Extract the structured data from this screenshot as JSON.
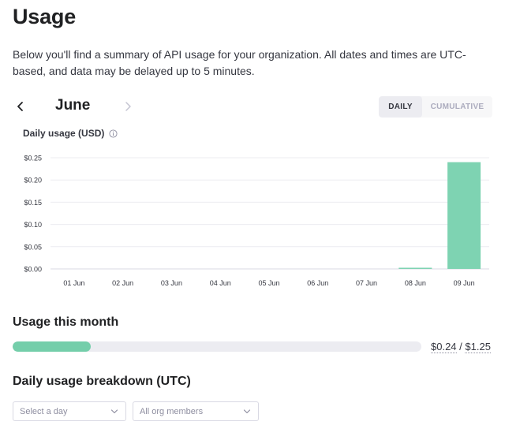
{
  "page": {
    "title": "Usage",
    "intro": "Below you'll find a summary of API usage for your organization. All dates and times are UTC-based, and data may be delayed up to 5 minutes."
  },
  "month_nav": {
    "month": "June",
    "prev_icon": "chevron-left-icon",
    "next_icon": "chevron-right-icon"
  },
  "view_toggle": {
    "options": [
      "DAILY",
      "CUMULATIVE"
    ],
    "selected": "DAILY"
  },
  "chart_section": {
    "title": "Daily usage (USD)",
    "info_icon": "info-icon"
  },
  "chart_data": {
    "type": "bar",
    "categories": [
      "01 Jun",
      "02 Jun",
      "03 Jun",
      "04 Jun",
      "05 Jun",
      "06 Jun",
      "07 Jun",
      "08 Jun",
      "09 Jun"
    ],
    "values": [
      0,
      0,
      0,
      0,
      0,
      0,
      0,
      0.002,
      0.24
    ],
    "ylim": [
      0,
      0.25
    ],
    "yticks": [
      "$0.00",
      "$0.05",
      "$0.10",
      "$0.15",
      "$0.20",
      "$0.25"
    ],
    "title": "",
    "xlabel": "",
    "ylabel": "",
    "grid": true,
    "bar_color": "#7ed3b2"
  },
  "usage_month": {
    "title": "Usage this month",
    "used": "$0.24",
    "separator": " / ",
    "limit": "$1.25",
    "progress_fraction": 0.192,
    "progress_color": "#74ceaa"
  },
  "breakdown": {
    "title": "Daily usage breakdown (UTC)",
    "day_select_placeholder": "Select a day",
    "members_select_value": "All org members"
  },
  "colors": {
    "accent": "#74ceaa",
    "text": "#202123",
    "muted": "#8e8ea0"
  }
}
